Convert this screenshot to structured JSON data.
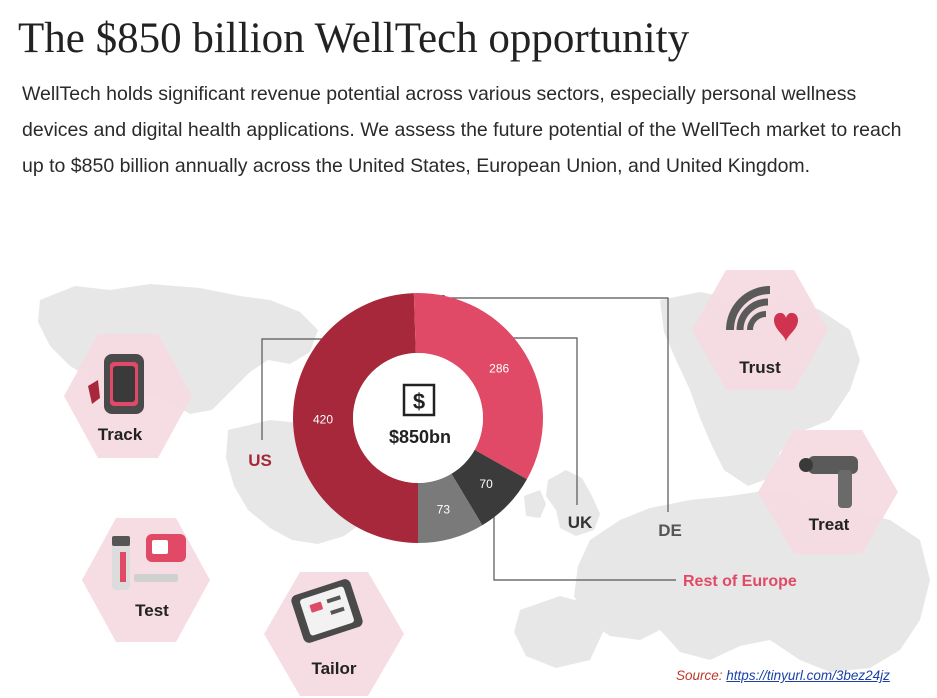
{
  "title": "The $850 billion WellTech opportunity",
  "intro": "WellTech holds significant revenue potential across various sectors, especially personal wellness devices and digital health applications. We assess the future potential of the WellTech market to reach up to $850 billion annually across the United States, European Union, and United Kingdom.",
  "colors": {
    "us": "#a8283b",
    "rest_of_europe": "#e04a66",
    "de": "#7a7a7a",
    "uk": "#3b3b3b",
    "hexagon": "#f6dbe1",
    "map": "#e7e7e7"
  },
  "chart_data": {
    "type": "pie",
    "variant": "donut",
    "unit": "$bn",
    "center_label": "$850bn",
    "center_icon": "$",
    "total": 850,
    "series": [
      {
        "name": "US",
        "value": 420
      },
      {
        "name": "Rest of Europe",
        "value": 286
      },
      {
        "name": "UK",
        "value": 70
      },
      {
        "name": "DE",
        "value": 73
      }
    ]
  },
  "segments": [
    {
      "label": "Track",
      "icon": "fitness-band-icon"
    },
    {
      "label": "Test",
      "icon": "test-kit-icon"
    },
    {
      "label": "Tailor",
      "icon": "phone-app-icon"
    },
    {
      "label": "Trust",
      "icon": "wifi-heart-icon"
    },
    {
      "label": "Treat",
      "icon": "massage-gun-icon"
    }
  ],
  "source": {
    "label": "Source:",
    "url": "https://tinyurl.com/3bez24jz"
  }
}
